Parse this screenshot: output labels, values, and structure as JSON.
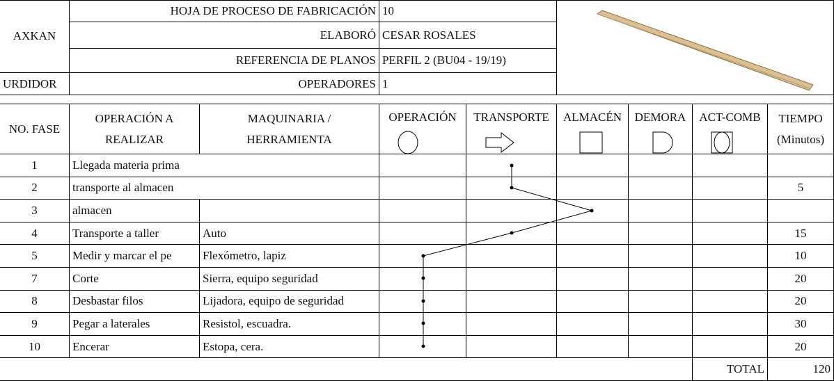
{
  "header": {
    "company": "AXKAN",
    "area": "URDIDOR",
    "fields": [
      {
        "label": "HOJA DE PROCESO DE FABRICACIÓN",
        "value": "10"
      },
      {
        "label": "ELABORÓ",
        "value": "CESAR ROSALES"
      },
      {
        "label": "REFERENCIA DE PLANOS",
        "value": "PERFIL 2 (BU04 - 19/19)"
      },
      {
        "label": "OPERADORES",
        "value": "1"
      }
    ]
  },
  "table": {
    "columns": [
      [
        "NO. FASE"
      ],
      [
        "OPERACIÓN A",
        "REALIZAR"
      ],
      [
        "MAQUINARIA /",
        "HERRAMIENTA"
      ],
      [
        "OPERACIÓN"
      ],
      [
        "TRANSPORTE"
      ],
      [
        "ALMACÉN"
      ],
      [
        "DEMORA"
      ],
      [
        "ACT-COMB"
      ],
      [
        "TIEMPO",
        "(Minutos)"
      ]
    ],
    "rows": [
      {
        "fase": 1,
        "operacion": "Llegada materia prima",
        "maquinaria": null,
        "tiempo": null
      },
      {
        "fase": 2,
        "operacion": "transporte al almacen",
        "maquinaria": null,
        "tiempo": 5
      },
      {
        "fase": 3,
        "operacion": "almacen",
        "maquinaria": null,
        "tiempo": null
      },
      {
        "fase": 4,
        "operacion": "Transporte a taller",
        "maquinaria": "Auto",
        "tiempo": 15
      },
      {
        "fase": 5,
        "operacion": "Medir y marcar el pe",
        "maquinaria": "Flexómetro, lapiz",
        "tiempo": 10
      },
      {
        "fase": 7,
        "operacion": "Corte",
        "maquinaria": "Sierra, equipo seguridad",
        "tiempo": 20
      },
      {
        "fase": 8,
        "operacion": "Desbastar filos",
        "maquinaria": "Lijadora, equipo de seguridad",
        "tiempo": 20
      },
      {
        "fase": 9,
        "operacion": "Pegar a laterales",
        "maquinaria": "Resistol, escuadra.",
        "tiempo": 30
      },
      {
        "fase": 10,
        "operacion": "Encerar",
        "maquinaria": "Estopa, cera.",
        "tiempo": 20
      }
    ],
    "total": {
      "label": "TOTAL",
      "value": 120
    }
  }
}
